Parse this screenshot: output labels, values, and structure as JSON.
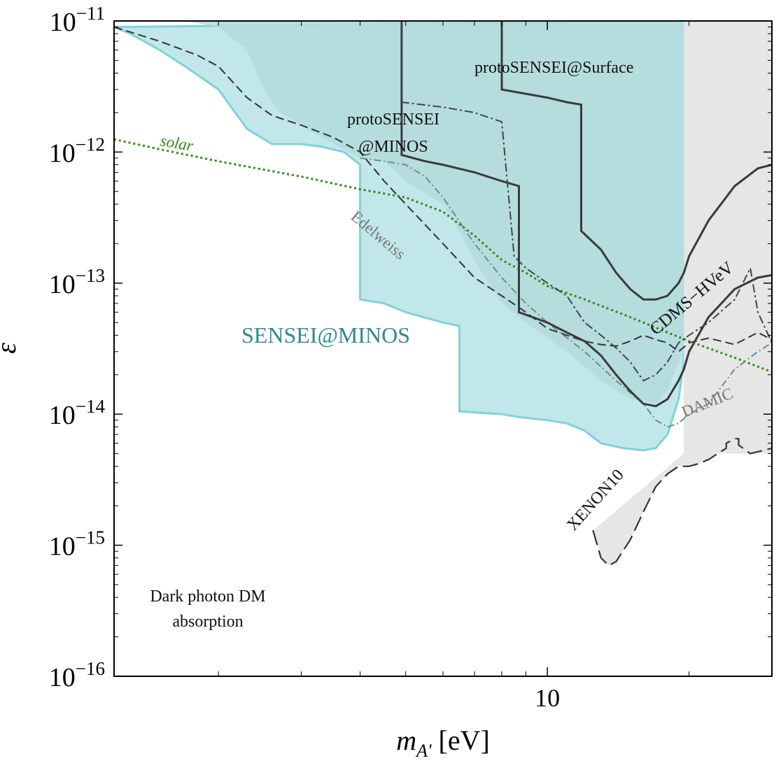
{
  "chart_data": {
    "type": "line",
    "xlabel": "m",
    "xlabel_sub": "A'",
    "xlabel_unit": "[eV]",
    "ylabel": "ε",
    "xscale": "log",
    "yscale": "log",
    "xlim": [
      1.2,
      30
    ],
    "ylim": [
      1e-16,
      1e-11
    ],
    "x_ticks": [
      {
        "value": 10,
        "label": "10"
      }
    ],
    "y_ticks": [
      {
        "value": 1e-11,
        "base": "10",
        "exp": "−11"
      },
      {
        "value": 1e-12,
        "base": "10",
        "exp": "−12"
      },
      {
        "value": 1e-13,
        "base": "10",
        "exp": "−13"
      },
      {
        "value": 1e-14,
        "base": "10",
        "exp": "−14"
      },
      {
        "value": 1e-15,
        "base": "10",
        "exp": "−15"
      },
      {
        "value": 1e-16,
        "base": "10",
        "exp": "−16"
      }
    ],
    "colors": {
      "sensei_fill": "#c2e7ea",
      "sensei_line": "#7fd3d8",
      "proto_fill": "#b5dcdd",
      "gray_fill": "#e6e6e6",
      "dark_line": "#3a3a3a",
      "solar": "#2d8a11",
      "edelweiss": "#6e8a8c"
    },
    "regions": [
      {
        "name": "SENSEI@MINOS",
        "x": [
          1.2,
          1.3,
          1.5,
          1.7,
          2.0,
          2.3,
          2.6,
          3.0,
          3.3,
          3.7,
          4.0,
          4.0,
          4.5,
          5.0,
          6.0,
          6.5,
          6.5,
          8.0,
          8.7,
          8.7,
          10.0,
          11.0,
          12.0,
          13.0,
          14.5,
          16.0,
          17.0,
          18.0,
          19.0,
          19.5,
          19.5
        ],
        "y": [
          9e-12,
          8e-12,
          6e-12,
          4.5e-12,
          3e-12,
          1.5e-12,
          1.15e-12,
          1.15e-12,
          1.1e-12,
          1e-12,
          8e-13,
          7.5e-14,
          7e-14,
          6e-14,
          5e-14,
          4.7e-14,
          1.05e-14,
          1e-14,
          9.5e-15,
          9.5e-15,
          9e-15,
          8.5e-15,
          7.5e-15,
          6e-15,
          5.5e-15,
          5.3e-15,
          5.5e-15,
          7e-15,
          1.3e-14,
          2.5e-14,
          1e-11
        ]
      },
      {
        "name": "protoSENSEI",
        "x": [
          1.2,
          1.4,
          1.7,
          2.0,
          2.3,
          2.5,
          2.7,
          3.0,
          3.3,
          3.6,
          4.0,
          4.5,
          5.0,
          6.0,
          6.5,
          7.0,
          8.0,
          9.0,
          11.0,
          13.0,
          15.0,
          17.0,
          18.0,
          19.0,
          19.5,
          19.5
        ],
        "y": [
          1e-11,
          1e-11,
          1e-11,
          9e-12,
          6e-12,
          3e-12,
          2e-12,
          1.6e-12,
          1.3e-12,
          1.1e-12,
          9e-13,
          8.5e-13,
          6e-13,
          4e-13,
          2.5e-13,
          1.5e-13,
          7e-14,
          5e-14,
          3e-14,
          1.8e-14,
          1.3e-14,
          1.2e-14,
          1.5e-14,
          2.5e-14,
          3e-14,
          1e-11
        ]
      },
      {
        "name": "XENON10",
        "x": [
          12.5,
          13.0,
          13.5,
          14.0,
          15.0,
          16.0,
          17.0,
          18.0,
          19.0,
          20.0,
          21.0,
          22.0,
          23.0,
          24.0,
          24.0,
          25.0,
          25.5,
          25.5,
          27.0,
          30.0,
          30.0,
          19.5,
          19.5,
          12.5
        ],
        "y": [
          1.3e-15,
          8e-16,
          7e-16,
          7.5e-16,
          1.1e-15,
          1.8e-15,
          2.8e-15,
          3.5e-15,
          4e-15,
          4e-15,
          4.2e-15,
          4.5e-15,
          5e-15,
          5.5e-15,
          6e-15,
          6.5e-15,
          6.5e-15,
          5.8e-15,
          5e-15,
          5.5e-15,
          1e-11,
          1e-11,
          5e-15,
          1.3e-15
        ]
      }
    ],
    "curves": [
      {
        "name": "solar",
        "x": [
          1.2,
          1.5,
          2.0,
          3.0,
          4.0,
          5.0,
          6.0,
          7.0,
          8.0,
          9.0,
          10.0,
          12.0,
          15.0,
          20.0,
          25.0,
          30.0
        ],
        "y": [
          1.25e-12,
          1.05e-12,
          8.5e-13,
          6.5e-13,
          5.2e-13,
          4.5e-13,
          3.5e-13,
          2.3e-13,
          1.5e-13,
          1.2e-13,
          9.5e-14,
          7.5e-14,
          5.5e-14,
          3.6e-14,
          2.7e-14,
          2.1e-14
        ]
      },
      {
        "name": "Edelweiss",
        "x": [
          4.0,
          4.5,
          5.0,
          5.5,
          6.0,
          7.0,
          8.0,
          9.0,
          10.0,
          12.0,
          14.0,
          16.0,
          17.0,
          18.0,
          19.0,
          20.0,
          22.0,
          25.0,
          28.0,
          30.0
        ],
        "y": [
          9e-13,
          8.5e-13,
          8e-13,
          6.5e-13,
          4.5e-13,
          2e-13,
          1.1e-13,
          7e-14,
          5e-14,
          3e-14,
          1.8e-14,
          1.2e-14,
          9e-15,
          8e-15,
          8.5e-15,
          1e-14,
          1.2e-14,
          2.2e-14,
          3e-14,
          3.5e-14
        ]
      },
      {
        "name": "CDMS-HVeV",
        "x": [
          1.2,
          1.5,
          1.8,
          2.0,
          2.3,
          2.6,
          3.0,
          3.5,
          4.0,
          4.5,
          5.0,
          6.0,
          7.0,
          8.0,
          9.0,
          10.0,
          11.0,
          12.0,
          13.0,
          14.0,
          15.0,
          16.0,
          17.0,
          18.0,
          19.0,
          20.0,
          22.0,
          25.0,
          28.0,
          30.0
        ],
        "y": [
          9e-12,
          7e-12,
          5.5e-12,
          4.5e-12,
          2.6e-12,
          1.9e-12,
          1.6e-12,
          1.3e-12,
          1e-12,
          6e-13,
          4e-13,
          2e-13,
          1.1e-13,
          8e-14,
          6e-14,
          4.5e-14,
          4e-14,
          3.6e-14,
          3.4e-14,
          3.3e-14,
          3.6e-14,
          4e-14,
          3.7e-14,
          3.5e-14,
          3e-14,
          3.5e-14,
          3.8e-14,
          3.4e-14,
          4.2e-14,
          3.7e-14
        ]
      },
      {
        "name": "protoSENSEI@MINOS",
        "x": [
          4.9,
          4.9,
          5.5,
          6.0,
          7.0,
          8.0,
          8.7,
          8.7,
          10.0,
          11.0,
          12.0,
          13.0,
          14.0,
          15.0,
          16.0,
          17.0,
          18.0,
          19.0,
          19.5,
          20.0,
          22.0,
          25.0,
          28.0,
          30.0
        ],
        "y": [
          1e-11,
          9.5e-13,
          8.5e-13,
          8e-13,
          7e-13,
          6e-13,
          5.5e-13,
          6e-14,
          5e-14,
          4.2e-14,
          3.6e-14,
          2.8e-14,
          2e-14,
          1.5e-14,
          1.2e-14,
          1.15e-14,
          1.3e-14,
          1.8e-14,
          2.2e-14,
          3e-14,
          5.5e-14,
          9e-14,
          1.1e-13,
          1.15e-13
        ]
      },
      {
        "name": "protoSENSEI@Surface",
        "x": [
          8.0,
          8.0,
          10.0,
          11.0,
          11.8,
          11.8,
          13.0,
          14.0,
          15.0,
          16.0,
          17.0,
          18.0,
          19.0,
          19.5,
          20.0,
          22.0,
          25.0,
          28.0,
          30.0
        ],
        "y": [
          1e-11,
          3e-12,
          2.6e-12,
          2.4e-12,
          2.3e-12,
          2.5e-13,
          1.8e-13,
          1.2e-13,
          9e-14,
          7.5e-14,
          7.5e-14,
          8e-14,
          1e-13,
          1.2e-13,
          1.6e-13,
          3e-13,
          5.5e-13,
          7.5e-13,
          8e-13
        ]
      },
      {
        "name": "DAMIC",
        "x": [
          4.9,
          4.9,
          6.0,
          7.0,
          8.0,
          8.5,
          9.0,
          10.0,
          11.0,
          12.0,
          13.0,
          14.0,
          15.0,
          16.0,
          17.0,
          18.0,
          19.0,
          20.0,
          22.0,
          25.0,
          27.0,
          28.0,
          30.0
        ],
        "y": [
          1e-11,
          2.4e-12,
          2.2e-12,
          2e-12,
          1.7e-12,
          1.6e-13,
          1.3e-13,
          1e-13,
          8e-14,
          5e-14,
          4e-14,
          3.2e-14,
          2.5e-14,
          1.8e-14,
          2e-14,
          2.5e-14,
          3.5e-14,
          4e-14,
          5e-14,
          7.5e-14,
          1.3e-13,
          6e-14,
          3.5e-14
        ]
      }
    ],
    "annotations": {
      "solar": "solar",
      "proto_minos": [
        "protoSENSEI",
        "@MINOS"
      ],
      "proto_surface": "protoSENSEI@Surface",
      "edelweiss": "Edelweiss",
      "sensei_minos": "SENSEI@MINOS",
      "cdms": "CDMS−HVeV",
      "damic": "DAMIC",
      "xenon": "XENON10",
      "corner": [
        "Dark photon DM",
        "absorption"
      ]
    }
  }
}
